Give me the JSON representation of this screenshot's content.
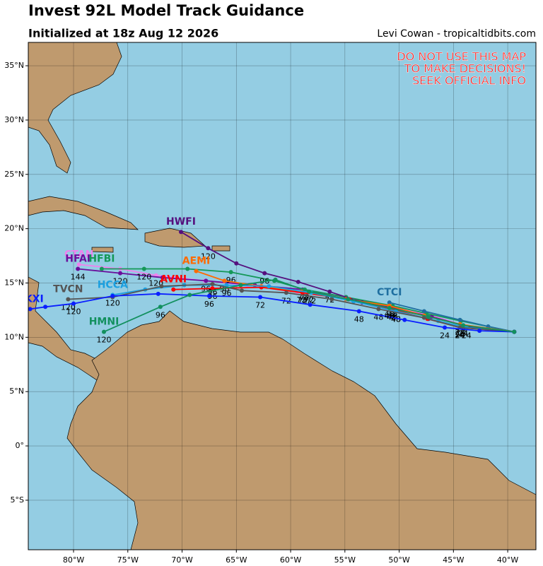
{
  "header": {
    "title": "Invest 92L Model Track Guidance",
    "subtitle": "Initialized at 18z Aug 12 2026",
    "credit": "Levi Cowan - tropicaltidbits.com"
  },
  "warning": [
    "DO NOT USE THIS MAP",
    "TO MAKE DECISIONS!",
    "SEEK OFFICIAL INFO"
  ],
  "map": {
    "lonlim": [
      -84.17,
      -37.4
    ],
    "latlim": [
      -9.56,
      37.15
    ],
    "lonticks": [
      {
        "value": -80,
        "label": "80°W"
      },
      {
        "value": -75,
        "label": "75°W"
      },
      {
        "value": -70,
        "label": "70°W"
      },
      {
        "value": -65,
        "label": "65°W"
      },
      {
        "value": -60,
        "label": "60°W"
      },
      {
        "value": -55,
        "label": "55°W"
      },
      {
        "value": -50,
        "label": "50°W"
      },
      {
        "value": -45,
        "label": "45°W"
      },
      {
        "value": -40,
        "label": "40°W"
      }
    ],
    "latticks": [
      {
        "value": -5,
        "label": "5°S"
      },
      {
        "value": 0,
        "label": "0°"
      },
      {
        "value": 5,
        "label": "5°N"
      },
      {
        "value": 10,
        "label": "10°N"
      },
      {
        "value": 15,
        "label": "15°N"
      },
      {
        "value": 20,
        "label": "20°N"
      },
      {
        "value": 25,
        "label": "25°N"
      },
      {
        "value": 30,
        "label": "30°N"
      },
      {
        "value": 35,
        "label": "35°N"
      }
    ],
    "models": [
      {
        "name": "CTAN",
        "color": "#ee82ee",
        "lon": [
          -79.5,
          -75.7,
          -72.4,
          -67.9,
          -64.0,
          -59.4,
          -54.9,
          -50.6,
          -47.0,
          -44.1,
          -39.4
        ],
        "lat": [
          16.7,
          16.3,
          15.7,
          15.2,
          14.8,
          14.2,
          13.7,
          12.8,
          12.0,
          11.1,
          10.5
        ],
        "hours": [
          null,
          null,
          "120",
          null,
          null,
          null,
          null,
          null,
          null,
          null,
          null
        ]
      },
      {
        "name": "HFAI",
        "color": "#6a0f9c",
        "lon": [
          -79.6,
          -75.7,
          -71.8,
          -67.8,
          -63.3,
          -58.9,
          -54.9,
          -50.6,
          -47.0,
          -44.1,
          -39.4
        ],
        "lat": [
          16.3,
          15.9,
          15.5,
          15.2,
          14.8,
          14.4,
          13.7,
          12.7,
          11.9,
          11.1,
          10.5
        ],
        "hours": [
          "144",
          "120",
          null,
          "96",
          null,
          "72",
          null,
          "48",
          null,
          "24",
          null
        ]
      },
      {
        "name": "HFBI",
        "color": "#159858",
        "lon": [
          -77.4,
          -73.5,
          -69.5,
          -65.5,
          -61.5,
          -58.7,
          -54.9,
          -50.6,
          -47.5,
          -44.3,
          -39.4
        ],
        "lat": [
          16.3,
          16.3,
          16.3,
          16.0,
          15.2,
          14.4,
          13.7,
          12.9,
          12.2,
          11.5,
          10.5
        ],
        "hours": [
          null,
          "120",
          null,
          "96",
          null,
          "72",
          null,
          "48",
          null,
          "24",
          null
        ]
      },
      {
        "name": "HWFI",
        "color": "#55107e",
        "lon": [
          -70.1,
          -67.6,
          -65.0,
          -62.4,
          -59.3,
          -56.4,
          -53.4,
          -50.3,
          -47.3,
          -44.4,
          -41.8,
          -39.4
        ],
        "lat": [
          19.7,
          18.2,
          16.8,
          15.9,
          15.1,
          14.2,
          13.2,
          12.4,
          11.7,
          11.0,
          10.8,
          10.5
        ],
        "hours": [
          null,
          "120",
          null,
          "96",
          null,
          "72",
          null,
          "48",
          null,
          "24",
          null,
          null
        ]
      },
      {
        "name": "CTCI",
        "color": "#1f6fa0",
        "lon": [
          -50.9,
          -47.7,
          -44.4,
          -41.8,
          -39.4
        ],
        "lat": [
          13.2,
          12.4,
          11.6,
          11.0,
          10.5
        ],
        "hours": [
          null,
          null,
          null,
          null,
          null
        ]
      },
      {
        "name": "AEMI",
        "color": "#ff6a00",
        "lon": [
          -68.7,
          -66.1,
          -62.7,
          -59.0,
          -54.9,
          -50.9,
          -47.7,
          -44.4,
          -39.4
        ],
        "lat": [
          16.1,
          15.2,
          14.7,
          14.2,
          13.5,
          12.9,
          12.0,
          11.2,
          10.5
        ],
        "hours": [
          null,
          "96",
          null,
          "72",
          null,
          "48",
          null,
          "24",
          null
        ]
      },
      {
        "name": "AVNI",
        "color": "#ff0000",
        "lon": [
          -70.8,
          -67.2,
          -62.7,
          -58.9,
          -54.6,
          -50.7,
          -47.4,
          -44.4,
          -39.4
        ],
        "lat": [
          14.4,
          14.5,
          14.6,
          14.1,
          13.5,
          12.6,
          11.7,
          10.9,
          10.5
        ],
        "hours": [
          null,
          "96",
          null,
          "72",
          null,
          "48",
          null,
          "24",
          null
        ]
      },
      {
        "name": "HCCA",
        "color": "#1ca0e0",
        "lon": [
          -76.4,
          -73.4,
          -69.8,
          -65.9,
          -62.0,
          -58.1,
          -54.2,
          -50.3,
          -46.4,
          -43.8,
          -39.4
        ],
        "lat": [
          13.9,
          14.4,
          14.8,
          14.8,
          14.7,
          14.1,
          13.3,
          12.4,
          11.5,
          10.9,
          10.5
        ],
        "hours": [
          "120",
          null,
          null,
          "96",
          null,
          "72",
          null,
          "48",
          null,
          "24",
          null
        ]
      },
      {
        "name": "TVCN",
        "color": "#555555",
        "lon": [
          -80.5,
          -76.4,
          -71.9,
          -67.2,
          -64.5,
          -60.4,
          -56.2,
          -51.9,
          -47.7,
          -44.4,
          -39.4
        ],
        "lat": [
          13.5,
          13.7,
          14.7,
          14.9,
          14.3,
          14.1,
          13.5,
          12.6,
          11.8,
          10.9,
          10.5
        ],
        "hours": [
          "120",
          null,
          null,
          "96",
          null,
          "72",
          null,
          "48",
          null,
          "24",
          null
        ]
      },
      {
        "name": "UKXI",
        "color": "#0a1eff",
        "lon": [
          -84.0,
          -82.6,
          -80.0,
          -76.4,
          -72.2,
          -67.5,
          -62.8,
          -58.2,
          -53.7,
          -49.5,
          -45.8,
          -42.6,
          -39.4
        ],
        "lat": [
          12.6,
          12.8,
          13.1,
          13.8,
          14.0,
          13.8,
          13.7,
          13.0,
          12.4,
          11.6,
          10.9,
          10.6,
          10.5
        ],
        "hours": [
          null,
          null,
          "120",
          null,
          null,
          "96",
          "72",
          null,
          "48",
          null,
          "24",
          null,
          null
        ]
      },
      {
        "name": "HMNI",
        "color": "#12905e",
        "lon": [
          -77.2,
          -72.0,
          -69.3,
          -64.6,
          -61.4,
          -58.3,
          -54.7,
          -50.9,
          -47.3,
          -44.1,
          -39.4
        ],
        "lat": [
          10.5,
          12.8,
          13.9,
          14.8,
          15.3,
          14.2,
          13.5,
          12.7,
          11.9,
          11.1,
          10.5
        ],
        "hours": [
          "120",
          "96",
          null,
          null,
          null,
          "72",
          null,
          "48",
          null,
          "24",
          null
        ]
      }
    ]
  }
}
